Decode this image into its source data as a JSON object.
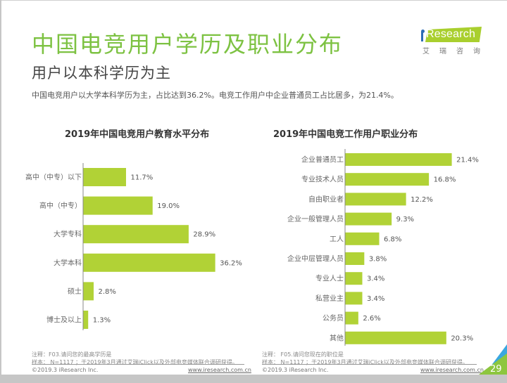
{
  "header": {
    "title": "中国电竞用户学历及职业分布",
    "subtitle": "用户以本科学历为主",
    "summary": "中国电竞用户以大学本科学历为主，占比达到36.2%。电竞工作用户中企业普通员工占比居多，为21.4%。"
  },
  "logo": {
    "brand": "iResearch",
    "brand_text": "Research",
    "chinese": "艾瑞咨询",
    "accent_color": "#a9cf2e"
  },
  "colors": {
    "title": "#7dc242",
    "bar": "#b1d236"
  },
  "chart_data": [
    {
      "type": "bar",
      "orientation": "horizontal",
      "title": "2019年中国电竞用户教育水平分布",
      "categories": [
        "高中（中专）以下",
        "高中（中专）",
        "大学专科",
        "大学本科",
        "硕士",
        "博士及以上"
      ],
      "values": [
        11.7,
        19.0,
        28.9,
        36.2,
        2.8,
        1.3
      ],
      "value_labels": [
        "11.7%",
        "19.0%",
        "28.9%",
        "36.2%",
        "2.8%",
        "1.3%"
      ],
      "unit": "%",
      "xlabel": "",
      "ylabel": "",
      "xlim": [
        0,
        40
      ],
      "grid": false,
      "legend": "none"
    },
    {
      "type": "bar",
      "orientation": "horizontal",
      "title": "2019年中国电竞工作用户职业分布",
      "categories": [
        "企业普通员工",
        "专业技术人员",
        "自由职业者",
        "企业一般管理人员",
        "工人",
        "企业中层管理人员",
        "专业人士",
        "私营业主",
        "公务员",
        "其他"
      ],
      "values": [
        21.4,
        16.8,
        12.2,
        9.3,
        6.8,
        3.8,
        3.4,
        3.4,
        2.6,
        20.3
      ],
      "value_labels": [
        "21.4%",
        "16.8%",
        "12.2%",
        "9.3%",
        "6.8%",
        "3.8%",
        "3.4%",
        "3.4%",
        "2.6%",
        "20.3%"
      ],
      "unit": "%",
      "xlabel": "",
      "ylabel": "",
      "xlim": [
        0,
        25
      ],
      "grid": false,
      "legend": "none"
    }
  ],
  "footnotes": {
    "left": {
      "note": "注释：F03.请问您的最高学历是",
      "sample": "样本： N=1117 ；于2019年3月通过艾瑞iClick以及外部电竞媒体联合调研获得。"
    },
    "right": {
      "note": "注释： F05.请问您现在的职位是",
      "sample": "样本： N=1117 ；于2019年3月通过艾瑞iClick以及外部电竞媒体联合调研获得。"
    }
  },
  "footer": {
    "copyright": "©2019.3 iResearch Inc.",
    "website": "www.iresearch.com.cn",
    "page_number": "29"
  }
}
